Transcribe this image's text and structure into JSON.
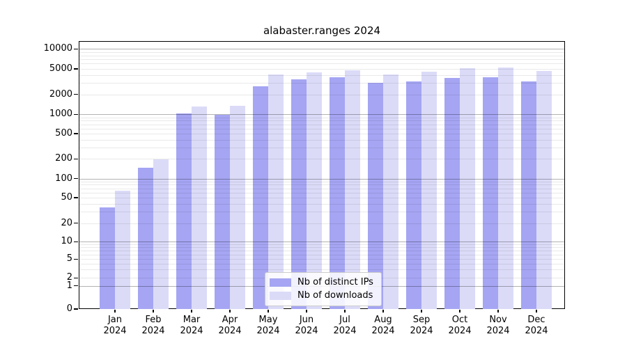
{
  "chart_data": {
    "type": "bar",
    "title": "alabaster.ranges 2024",
    "categories": [
      "Jan 2024",
      "Feb 2024",
      "Mar 2024",
      "Apr 2024",
      "May 2024",
      "Jun 2024",
      "Jul 2024",
      "Aug 2024",
      "Sep 2024",
      "Oct 2024",
      "Nov 2024",
      "Dec 2024"
    ],
    "series": [
      {
        "name": "Nb of distinct IPs",
        "color": "#a5a5f3",
        "values": [
          35,
          145,
          1040,
          980,
          2700,
          3400,
          3700,
          3020,
          3170,
          3580,
          3670,
          3220
        ]
      },
      {
        "name": "Nb of downloads",
        "color": "#dbdbf8",
        "values": [
          65,
          195,
          1310,
          1330,
          4050,
          4400,
          4750,
          4080,
          4540,
          5090,
          5210,
          4630
        ]
      }
    ],
    "yscale": "log",
    "ylim": [
      0,
      14000
    ],
    "yticks": [
      0,
      1,
      2,
      5,
      10,
      20,
      50,
      100,
      200,
      500,
      1000,
      2000,
      5000,
      10000
    ],
    "xlabel": "",
    "ylabel": "",
    "grid": true,
    "legend_position": "lower center"
  }
}
